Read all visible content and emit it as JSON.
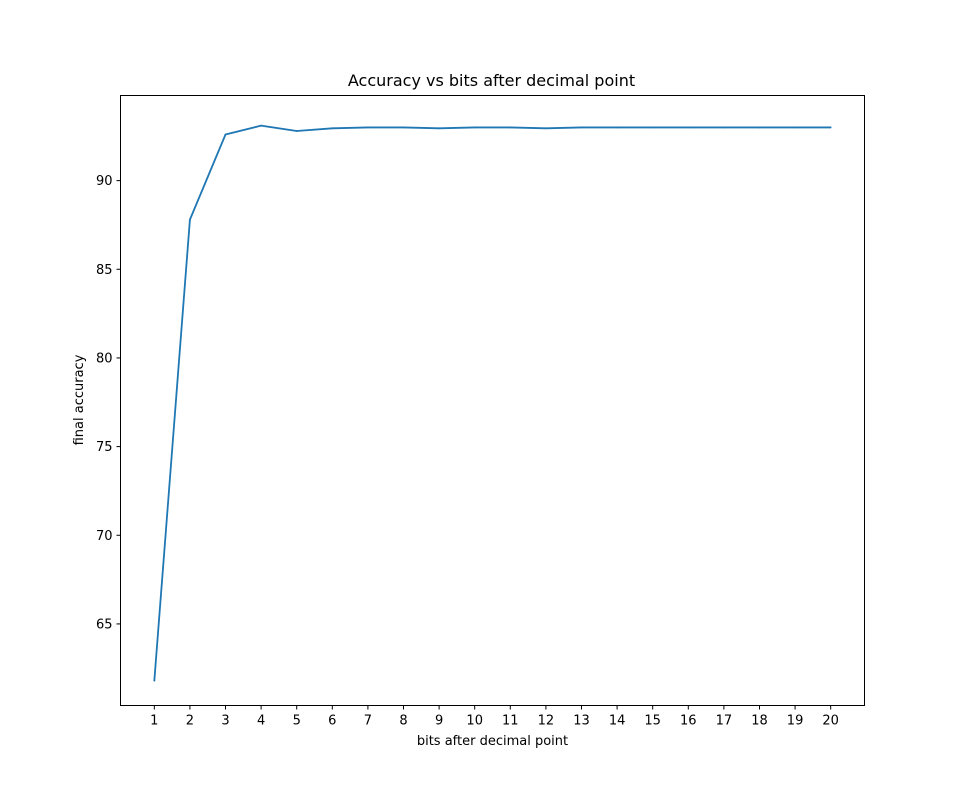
{
  "chart_data": {
    "type": "line",
    "title": "Accuracy vs bits after decimal point",
    "xlabel": "bits after decimal point",
    "ylabel": "final accuracy",
    "x": [
      1,
      2,
      3,
      4,
      5,
      6,
      7,
      8,
      9,
      10,
      11,
      12,
      13,
      14,
      15,
      16,
      17,
      18,
      19,
      20
    ],
    "series": [
      {
        "color": "#1f77b4",
        "values": [
          61.8,
          87.8,
          92.6,
          93.1,
          92.8,
          92.95,
          93.0,
          93.0,
          92.95,
          93.0,
          93.0,
          92.95,
          93.0,
          93.0,
          93.0,
          93.0,
          93.0,
          93.0,
          93.0,
          93.0
        ]
      }
    ],
    "xlim": [
      0.05,
      20.95
    ],
    "ylim": [
      60.4,
      94.8
    ],
    "xticks": [
      1,
      2,
      3,
      4,
      5,
      6,
      7,
      8,
      9,
      10,
      11,
      12,
      13,
      14,
      15,
      16,
      17,
      18,
      19,
      20
    ],
    "yticks": [
      65,
      70,
      75,
      80,
      85,
      90
    ],
    "grid": false,
    "legend": "none"
  }
}
